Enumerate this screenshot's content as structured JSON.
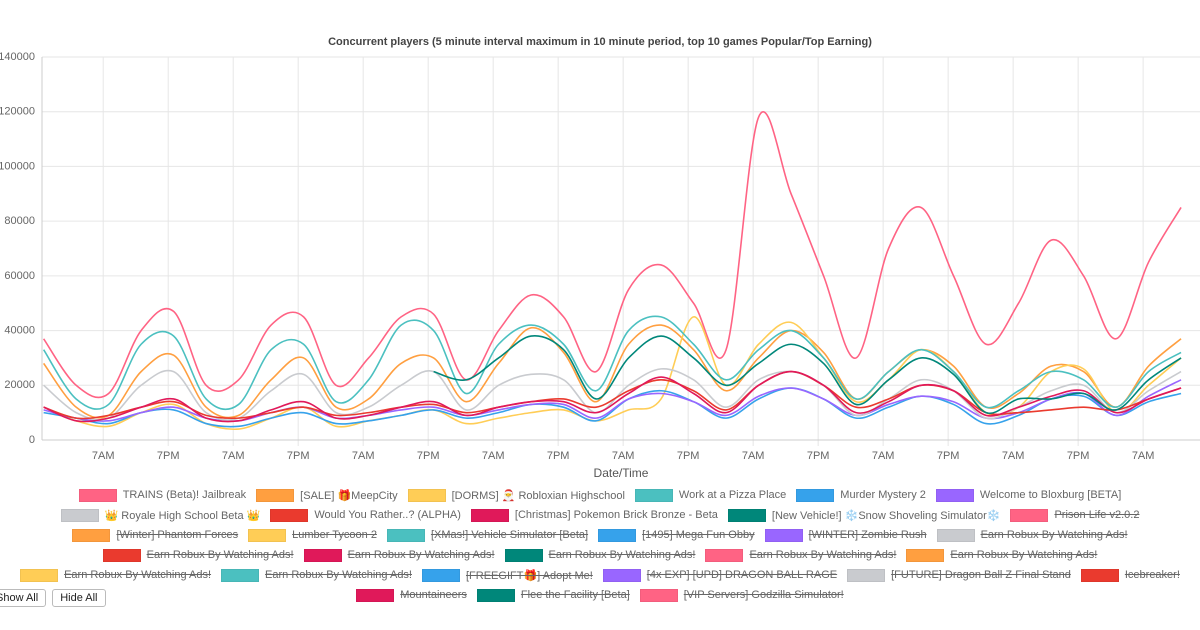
{
  "chart_data": {
    "type": "line",
    "title": "Concurrent players (5 minute interval maximum in 10 minute period, top 10 games Popular/Top Earning)",
    "x_label": "Date/Time",
    "xlim": [
      -11.3,
      202.5
    ],
    "xticks": [
      {
        "value": 0,
        "label": "7AM"
      },
      {
        "value": 12,
        "label": "7PM"
      },
      {
        "value": 24,
        "label": "7AM"
      },
      {
        "value": 36,
        "label": "7PM"
      },
      {
        "value": 48,
        "label": "7AM"
      },
      {
        "value": 60,
        "label": "7PM"
      },
      {
        "value": 72,
        "label": "7AM"
      },
      {
        "value": 84,
        "label": "7PM"
      },
      {
        "value": 96,
        "label": "7AM"
      },
      {
        "value": 108,
        "label": "7PM"
      },
      {
        "value": 120,
        "label": "7AM"
      },
      {
        "value": 132,
        "label": "7PM"
      },
      {
        "value": 144,
        "label": "7AM"
      },
      {
        "value": 156,
        "label": "7PM"
      },
      {
        "value": 168,
        "label": "7AM"
      },
      {
        "value": 180,
        "label": "7PM"
      },
      {
        "value": 192,
        "label": "7AM"
      }
    ],
    "ylim": [
      0,
      140000
    ],
    "yticks": [
      0,
      20000,
      40000,
      60000,
      80000,
      100000,
      120000,
      140000
    ],
    "grid": true,
    "x": [
      -11,
      -5,
      1,
      7,
      13,
      19,
      25,
      31,
      37,
      43,
      49,
      55,
      61,
      67,
      73,
      79,
      85,
      91,
      97,
      103,
      109,
      115,
      121,
      127,
      133,
      139,
      145,
      151,
      157,
      163,
      169,
      175,
      181,
      187,
      193,
      199
    ],
    "series": [
      {
        "name": "TRAINS (Beta)! Jailbreak",
        "color": "#ff6384",
        "values": [
          37000,
          20000,
          17000,
          40000,
          47000,
          20000,
          22000,
          42000,
          45000,
          20000,
          30000,
          45000,
          46000,
          22000,
          40000,
          53000,
          45000,
          25000,
          55000,
          64000,
          50000,
          33000,
          118000,
          90000,
          60000,
          30000,
          70000,
          85000,
          60000,
          35000,
          50000,
          73000,
          60000,
          37000,
          65000,
          85000
        ]
      },
      {
        "name": "[SALE] 🎁MeepCity",
        "color": "#ff9f40",
        "values": [
          28000,
          12000,
          9000,
          25000,
          31000,
          12000,
          9000,
          22000,
          30000,
          12000,
          15000,
          28000,
          30000,
          14000,
          28000,
          41000,
          32000,
          14000,
          35000,
          42000,
          33000,
          18000,
          30000,
          40000,
          32000,
          15000,
          25000,
          33000,
          27000,
          12000,
          17000,
          27000,
          25000,
          12000,
          27000,
          37000
        ]
      },
      {
        "name": "[DORMS] 🎅 Robloxian Highschool",
        "color": "#ffcd56",
        "values": [
          12000,
          7000,
          5000,
          10000,
          13000,
          6000,
          4000,
          8000,
          12000,
          5000,
          7000,
          9000,
          11000,
          6000,
          8000,
          10000,
          11000,
          7000,
          11000,
          15000,
          45000,
          20000,
          35000,
          43000,
          30000,
          14000,
          22000,
          33000,
          25000,
          10000,
          12000,
          25000,
          26000,
          10000,
          20000,
          30000
        ]
      },
      {
        "name": "Work at a Pizza Place",
        "color": "#4bc0c0",
        "values": [
          33000,
          15000,
          13000,
          35000,
          38000,
          15000,
          13000,
          33000,
          35000,
          14000,
          22000,
          42000,
          40000,
          17000,
          35000,
          42000,
          35000,
          18000,
          40000,
          45000,
          35000,
          22000,
          33000,
          40000,
          30000,
          15000,
          25000,
          33000,
          25000,
          12000,
          18000,
          25000,
          22000,
          12000,
          25000,
          32000
        ]
      },
      {
        "name": "Murder Mystery 2",
        "color": "#36a2eb",
        "values": [
          10000,
          8000,
          6000,
          10000,
          11000,
          6000,
          5000,
          8000,
          10000,
          6000,
          7000,
          9000,
          11000,
          8000,
          10000,
          13000,
          12000,
          7000,
          15000,
          18000,
          14000,
          8000,
          15000,
          19000,
          15000,
          8000,
          12000,
          16000,
          13000,
          6000,
          9000,
          15000,
          16000,
          9000,
          14000,
          17000
        ]
      },
      {
        "name": "Welcome to Bloxburg [BETA]",
        "color": "#9966ff",
        "values": [
          11000,
          8000,
          7000,
          10000,
          12000,
          8000,
          7000,
          10000,
          12000,
          8000,
          9000,
          11000,
          12000,
          9000,
          11000,
          13000,
          13000,
          8000,
          15000,
          17000,
          14000,
          9000,
          16000,
          19000,
          15000,
          9000,
          13000,
          16000,
          14000,
          8000,
          10000,
          15000,
          17000,
          9000,
          16000,
          22000
        ]
      },
      {
        "name": "👑 Royale High School Beta 👑",
        "color": "#c9cbcf",
        "values": [
          20000,
          10000,
          8000,
          20000,
          25000,
          10000,
          8000,
          18000,
          24000,
          10000,
          12000,
          20000,
          25000,
          11000,
          20000,
          24000,
          22000,
          10000,
          20000,
          26000,
          22000,
          12000,
          22000,
          25000,
          20000,
          9000,
          15000,
          22000,
          18000,
          8000,
          12000,
          18000,
          20000,
          10000,
          18000,
          25000
        ]
      },
      {
        "name": "Would You Rather..? (ALPHA)",
        "color": "#ea3a2e",
        "values": [
          12000,
          8000,
          9000,
          12000,
          14000,
          9000,
          8000,
          10000,
          12000,
          9000,
          10000,
          12000,
          13000,
          10000,
          12000,
          14000,
          15000,
          12000,
          18000,
          22000,
          18000,
          11000,
          20000,
          25000,
          20000,
          12000,
          15000,
          20000,
          18000,
          10000,
          10000,
          11000,
          12000,
          11000,
          15000,
          19000
        ]
      },
      {
        "name": "[Christmas] Pokemon Brick Bronze - Beta",
        "color": "#e0195a",
        "values": [
          12000,
          7000,
          8000,
          12000,
          15000,
          8000,
          7000,
          11000,
          14000,
          8000,
          9000,
          12000,
          14000,
          9000,
          12000,
          14000,
          14000,
          10000,
          17000,
          23000,
          17000,
          10000,
          20000,
          25000,
          20000,
          10000,
          14000,
          20000,
          18000,
          9000,
          12000,
          16000,
          18000,
          10000,
          15000,
          19000
        ]
      },
      {
        "name": "[New Vehicle!] ❄️Snow Shoveling Simulator❄️",
        "color": "#00877a",
        "values": [
          null,
          null,
          null,
          null,
          null,
          null,
          null,
          null,
          null,
          null,
          null,
          null,
          25000,
          22000,
          30000,
          38000,
          33000,
          15000,
          30000,
          38000,
          30000,
          20000,
          28000,
          35000,
          28000,
          13000,
          22000,
          30000,
          24000,
          10000,
          15000,
          15000,
          17000,
          11000,
          22000,
          30000
        ]
      }
    ],
    "hidden_series": [
      {
        "name": "Prison Life v2.0.2",
        "color": "#ff6384"
      },
      {
        "name": "[Winter] Phantom Forces",
        "color": "#ff9f40"
      },
      {
        "name": "Lumber Tycoon 2",
        "color": "#ffcd56"
      },
      {
        "name": "[XMas!] Vehicle Simulator [Beta]",
        "color": "#4bc0c0"
      },
      {
        "name": "[1495] Mega Fun Obby",
        "color": "#36a2eb"
      },
      {
        "name": "[WINTER] Zombie Rush",
        "color": "#9966ff"
      },
      {
        "name": "Earn Robux By Watching Ads!",
        "color": "#c9cbcf"
      },
      {
        "name": "Earn Robux By Watching Ads!",
        "color": "#ea3a2e"
      },
      {
        "name": "Earn Robux By Watching Ads!",
        "color": "#e0195a"
      },
      {
        "name": "Earn Robux By Watching Ads!",
        "color": "#00877a"
      },
      {
        "name": "Earn Robux By Watching Ads!",
        "color": "#ff6384"
      },
      {
        "name": "Earn Robux By Watching Ads!",
        "color": "#ff9f40"
      },
      {
        "name": "Earn Robux By Watching Ads!",
        "color": "#ffcd56"
      },
      {
        "name": "Earn Robux By Watching Ads!",
        "color": "#4bc0c0"
      },
      {
        "name": "[FREEGIFT🎁] Adopt Me!",
        "color": "#36a2eb"
      },
      {
        "name": "[4x EXP] [UPD] DRAGON BALL RAGE",
        "color": "#9966ff"
      },
      {
        "name": "[FUTURE] Dragon Ball Z Final Stand",
        "color": "#c9cbcf"
      },
      {
        "name": "Icebreaker!",
        "color": "#ea3a2e"
      },
      {
        "name": "Mountaineers",
        "color": "#e0195a"
      },
      {
        "name": "Flee the Facility [Beta]",
        "color": "#00877a"
      },
      {
        "name": "[VIP Servers] Godzilla Simulator!",
        "color": "#ff6384"
      }
    ],
    "buttons": [
      "Show All",
      "Hide All"
    ]
  }
}
